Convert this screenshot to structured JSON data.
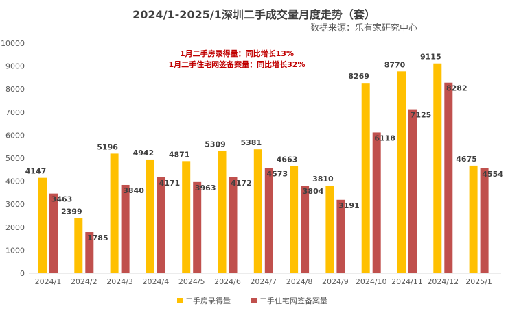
{
  "chart_data": {
    "type": "bar",
    "title": "2024/1-2025/1深圳二手成交量月度走势（套）",
    "subtitle": "数据来源：乐有家研究中心",
    "annotations": [
      "1月二手房录得量：同比增长13%",
      "1月二手住宅网签备案量：同比增长32%"
    ],
    "categories": [
      "2024/1",
      "2024/2",
      "2024/3",
      "2024/4",
      "2024/5",
      "2024/6",
      "2024/7",
      "2024/8",
      "2024/9",
      "2024/10",
      "2024/11",
      "2024/12",
      "2025/1"
    ],
    "series": [
      {
        "name": "二手房录得量",
        "color": "#FFC000",
        "values": [
          4147,
          2399,
          5196,
          4942,
          4871,
          5309,
          5381,
          4663,
          3810,
          8269,
          8770,
          9115,
          4675
        ]
      },
      {
        "name": "二手住宅网签备案量",
        "color": "#C0504D",
        "values": [
          3463,
          1785,
          3840,
          4171,
          3963,
          4172,
          4573,
          3804,
          3191,
          6118,
          7125,
          8282,
          4554
        ]
      }
    ],
    "ylim": [
      0,
      10000
    ],
    "yticks": [
      0,
      1000,
      2000,
      3000,
      4000,
      5000,
      6000,
      7000,
      8000,
      9000,
      10000
    ],
    "grid": false,
    "legend": "bottom",
    "data_labels": true
  }
}
